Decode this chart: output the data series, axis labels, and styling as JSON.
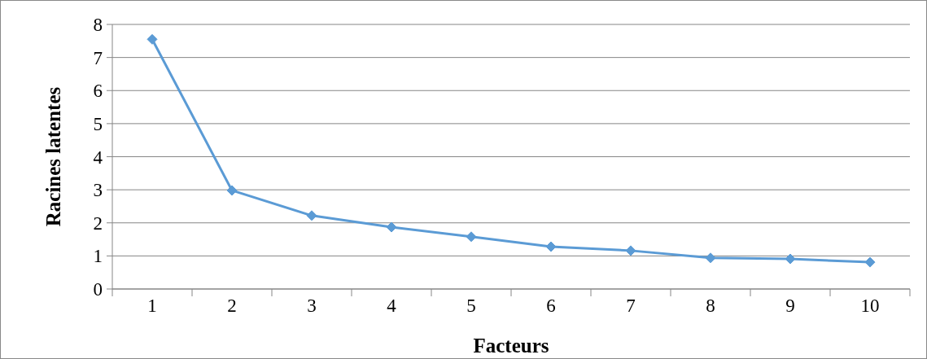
{
  "chart_data": {
    "type": "line",
    "xlabel": "Facteurs",
    "ylabel": "Racines latentes",
    "categories": [
      "1",
      "2",
      "3",
      "4",
      "5",
      "6",
      "7",
      "8",
      "9",
      "10"
    ],
    "series": [
      {
        "color": "#5b9bd5",
        "values": [
          7.55,
          2.98,
          2.22,
          1.87,
          1.58,
          1.28,
          1.16,
          0.94,
          0.91,
          0.81
        ]
      }
    ],
    "ylim": [
      0,
      8
    ],
    "yticks": [
      0,
      1,
      2,
      3,
      4,
      5,
      6,
      7,
      8
    ],
    "grid": "y",
    "marker": "diamond",
    "line_style": "solid"
  }
}
